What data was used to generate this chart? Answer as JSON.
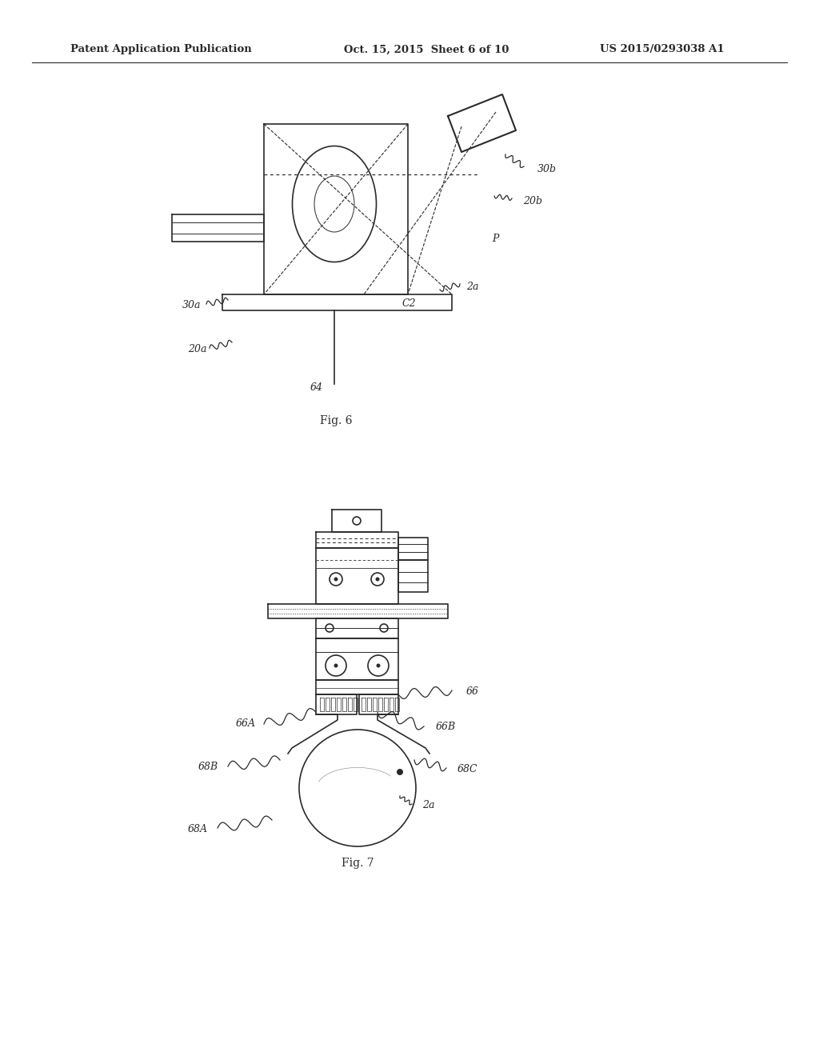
{
  "background_color": "#ffffff",
  "line_color": "#2a2a2a",
  "text_color": "#2a2a2a",
  "header_left": "Patent Application Publication",
  "header_mid": "Oct. 15, 2015  Sheet 6 of 10",
  "header_right": "US 2015/0293038 A1",
  "fig6_label": "Fig. 6",
  "fig7_label": "Fig. 7",
  "header_fontsize": 9.5,
  "label_fontsize": 9
}
